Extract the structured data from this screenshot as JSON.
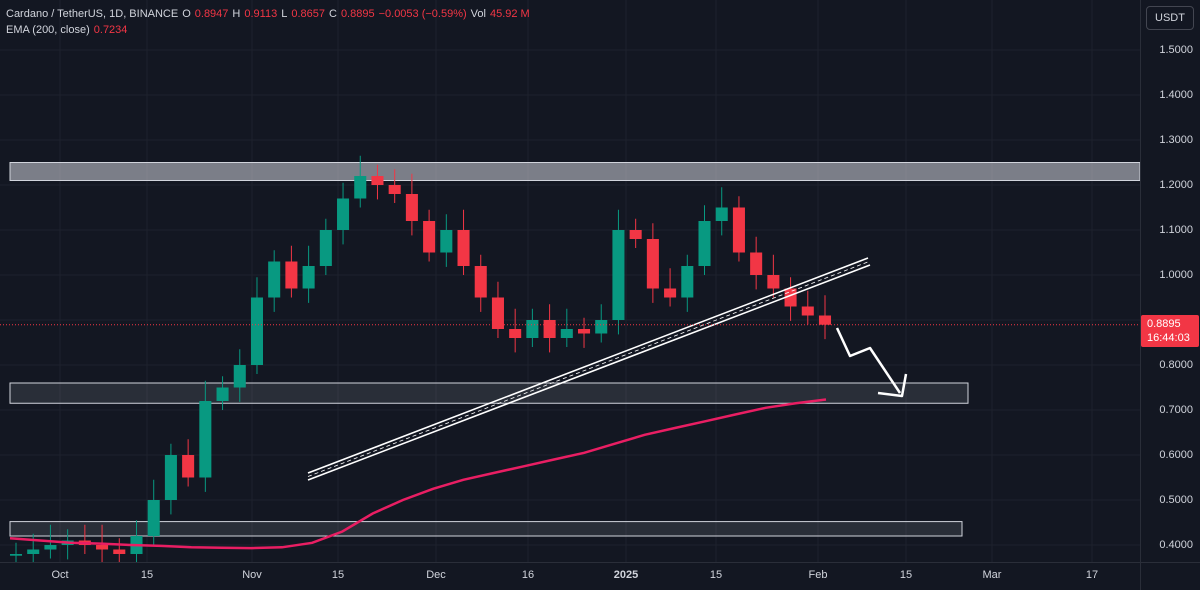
{
  "legend": {
    "symbol": "Cardano / TetherUS, 1D, BINANCE",
    "open_label": "O",
    "open": "0.8947",
    "high_label": "H",
    "high": "0.9113",
    "low_label": "L",
    "low": "0.8657",
    "close_label": "C",
    "close": "0.8895",
    "change": "−0.0053 (−0.59%)",
    "vol_label": "Vol",
    "vol": "45.92 M",
    "ema_label": "EMA (200, close)",
    "ema_value": "0.7234"
  },
  "price_axis": {
    "currency": "USDT",
    "ticks": [
      "1.5000",
      "1.4000",
      "1.3000",
      "1.2000",
      "1.1000",
      "1.0000",
      "0.9000",
      "0.8000",
      "0.7000",
      "0.6000",
      "0.5000",
      "0.4000"
    ],
    "tick_values": [
      1.5,
      1.4,
      1.3,
      1.2,
      1.1,
      1.0,
      0.9,
      0.8,
      0.7,
      0.6,
      0.5,
      0.4
    ],
    "last_price": "0.8895",
    "countdown": "16:44:03"
  },
  "time_axis": {
    "labels": [
      "Oct",
      "15",
      "Nov",
      "15",
      "Dec",
      "16",
      "2025",
      "15",
      "Feb",
      "15",
      "Mar",
      "17"
    ],
    "bold_label": "2025"
  },
  "colors": {
    "background": "#131722",
    "up": "#089981",
    "down": "#f23645",
    "ema": "#e91e63",
    "zone": "#d1d4dc",
    "trendline": "#ffffff"
  },
  "chart_data": {
    "type": "candlestick",
    "series": [
      {
        "name": "Cardano / TetherUS, 1D, BINANCE"
      },
      {
        "name": "EMA (200, close)"
      }
    ],
    "ylim": [
      0.37,
      1.55
    ],
    "zones": [
      [
        1.21,
        1.25
      ],
      [
        0.715,
        0.76
      ],
      [
        0.42,
        0.452
      ]
    ],
    "ema": [
      0.415,
      0.41,
      0.405,
      0.403,
      0.4,
      0.398,
      0.395,
      0.394,
      0.393,
      0.395,
      0.405,
      0.43,
      0.47,
      0.5,
      0.525,
      0.545,
      0.56,
      0.575,
      0.59,
      0.605,
      0.625,
      0.645,
      0.66,
      0.675,
      0.69,
      0.705,
      0.715,
      0.7234
    ],
    "closes": [
      0.38,
      0.39,
      0.4,
      0.41,
      0.4,
      0.39,
      0.38,
      0.42,
      0.5,
      0.6,
      0.55,
      0.72,
      0.75,
      0.8,
      0.95,
      1.03,
      0.97,
      1.02,
      1.1,
      1.17,
      1.22,
      1.2,
      1.18,
      1.12,
      1.05,
      1.1,
      1.02,
      0.95,
      0.88,
      0.86,
      0.9,
      0.86,
      0.88,
      0.87,
      0.9,
      1.1,
      1.08,
      0.97,
      0.95,
      1.02,
      1.12,
      1.15,
      1.05,
      1.0,
      0.97,
      0.93,
      0.91,
      0.8895
    ]
  }
}
